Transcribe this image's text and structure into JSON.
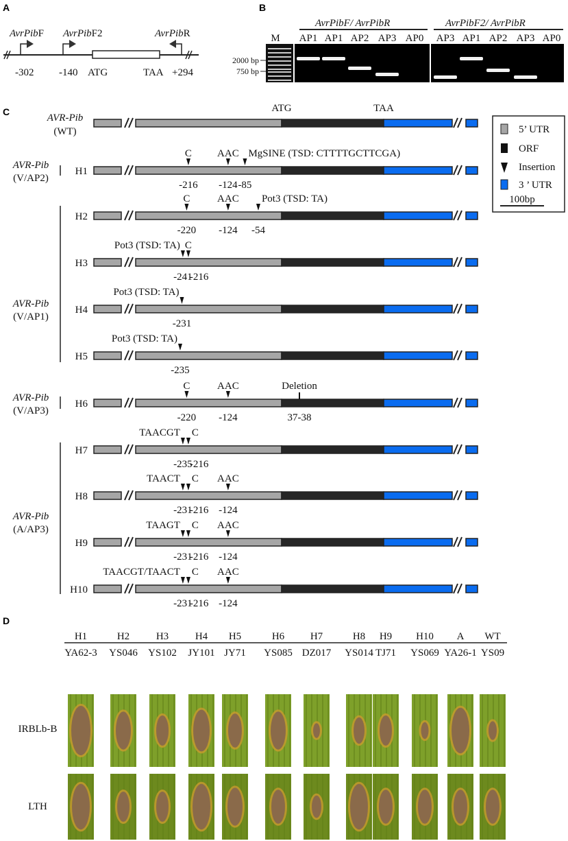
{
  "panels": {
    "a": "A",
    "b": "B",
    "c": "C",
    "d": "D"
  },
  "panel_a": {
    "primer_f": "AvrPib",
    "primer_f_suffix": "F",
    "primer_f2": "AvrPib",
    "primer_f2_suffix": "F2",
    "primer_r": "AvrPib",
    "primer_r_suffix": "R",
    "pos_f": "-302",
    "pos_f2": "-140",
    "start": "ATG",
    "stop": "TAA",
    "pos_r": "+294"
  },
  "panel_b": {
    "group1": "AvrPibF/ AvrPibR",
    "group2": "AvrPibF2/ AvrPibR",
    "marker": "M",
    "lanes1": [
      "AP1",
      "AP1",
      "AP2",
      "AP3",
      "AP0"
    ],
    "lanes2": [
      "AP3",
      "AP1",
      "AP2",
      "AP3",
      "AP0"
    ],
    "ladder": [
      "2000 bp",
      "750 bp"
    ]
  },
  "panel_c": {
    "wt_name": "AVR-Pib",
    "wt_sub": "(WT)",
    "atg": "ATG",
    "taa": "TAA",
    "groups": [
      {
        "name": "AVR-Pib",
        "sub": "(V/AP2)"
      },
      {
        "name": "AVR-Pib",
        "sub": "(V/AP1)"
      },
      {
        "name": "AVR-Pib",
        "sub": "(V/AP3)"
      },
      {
        "name": "AVR-Pib",
        "sub": "(A/AP3)"
      }
    ],
    "haplotypes": [
      {
        "id": "H1",
        "marks": [
          {
            "pos": -216,
            "above": "C",
            "below": "-216"
          },
          {
            "pos": -124,
            "above": "AAC",
            "below": "-124"
          },
          {
            "pos": -85,
            "above": "MgSINE (TSD: CTTTTGCTTCGA)",
            "below": "-85"
          }
        ]
      },
      {
        "id": "H2",
        "marks": [
          {
            "pos": -220,
            "above": "C",
            "below": "-220"
          },
          {
            "pos": -124,
            "above": "AAC",
            "below": "-124"
          },
          {
            "pos": -54,
            "above": "Pot3 (TSD: TA)",
            "below": "-54"
          }
        ]
      },
      {
        "id": "H3",
        "marks": [
          {
            "pos": -241,
            "above": "Pot3 (TSD: TA)",
            "below": "-241"
          },
          {
            "pos": -216,
            "above": "C",
            "below": "-216"
          }
        ]
      },
      {
        "id": "H4",
        "marks": [
          {
            "pos": -231,
            "above": "Pot3 (TSD: TA)",
            "below": "-231"
          }
        ]
      },
      {
        "id": "H5",
        "marks": [
          {
            "pos": -235,
            "above": "Pot3 (TSD: TA)",
            "below": "-235"
          }
        ]
      },
      {
        "id": "H6",
        "marks": [
          {
            "pos": -220,
            "above": "C",
            "below": "-220"
          },
          {
            "pos": -124,
            "above": "AAC",
            "below": "-124"
          }
        ],
        "deletion": {
          "label": "Deletion",
          "below": "37-38"
        }
      },
      {
        "id": "H7",
        "marks": [
          {
            "pos": -235,
            "above": "TAACGT",
            "below": "-235"
          },
          {
            "pos": -216,
            "above": "C",
            "below": "-216"
          }
        ]
      },
      {
        "id": "H8",
        "marks": [
          {
            "pos": -231,
            "above": "TAACT",
            "below": "-231"
          },
          {
            "pos": -216,
            "above": "C",
            "below": "-216"
          },
          {
            "pos": -124,
            "above": "AAC",
            "below": "-124"
          }
        ]
      },
      {
        "id": "H9",
        "marks": [
          {
            "pos": -231,
            "above": "TAAGT",
            "below": "-231"
          },
          {
            "pos": -216,
            "above": "C",
            "below": "-216"
          },
          {
            "pos": -124,
            "above": "AAC",
            "below": "-124"
          }
        ]
      },
      {
        "id": "H10",
        "marks": [
          {
            "pos": -231,
            "above": "TAACGT/TAACT",
            "below": "-231"
          },
          {
            "pos": -216,
            "above": "C",
            "below": "-216"
          },
          {
            "pos": -124,
            "above": "AAC",
            "below": "-124"
          }
        ]
      }
    ],
    "legend": {
      "utr5": "5’ UTR",
      "orf": "ORF",
      "insertion": "Insertion",
      "utr3": "3 ’ UTR",
      "scale": "100bp"
    },
    "colors": {
      "utr5": "#a6a6a6",
      "orf": "#262626",
      "utr3": "#0a6cf0"
    }
  },
  "panel_d": {
    "haplotypes": [
      "H1",
      "H2",
      "H3",
      "H4",
      "H5",
      "H6",
      "H7",
      "H8",
      "H9",
      "H10",
      "A",
      "WT"
    ],
    "isolates": [
      "YA62-3",
      "YS046",
      "YS102",
      "JY101",
      "JY71",
      "YS085",
      "DZ017",
      "YS014",
      "TJ71",
      "YS069",
      "YA26-1",
      "YS09"
    ],
    "rows": [
      "IRBLb-B",
      "LTH"
    ]
  }
}
